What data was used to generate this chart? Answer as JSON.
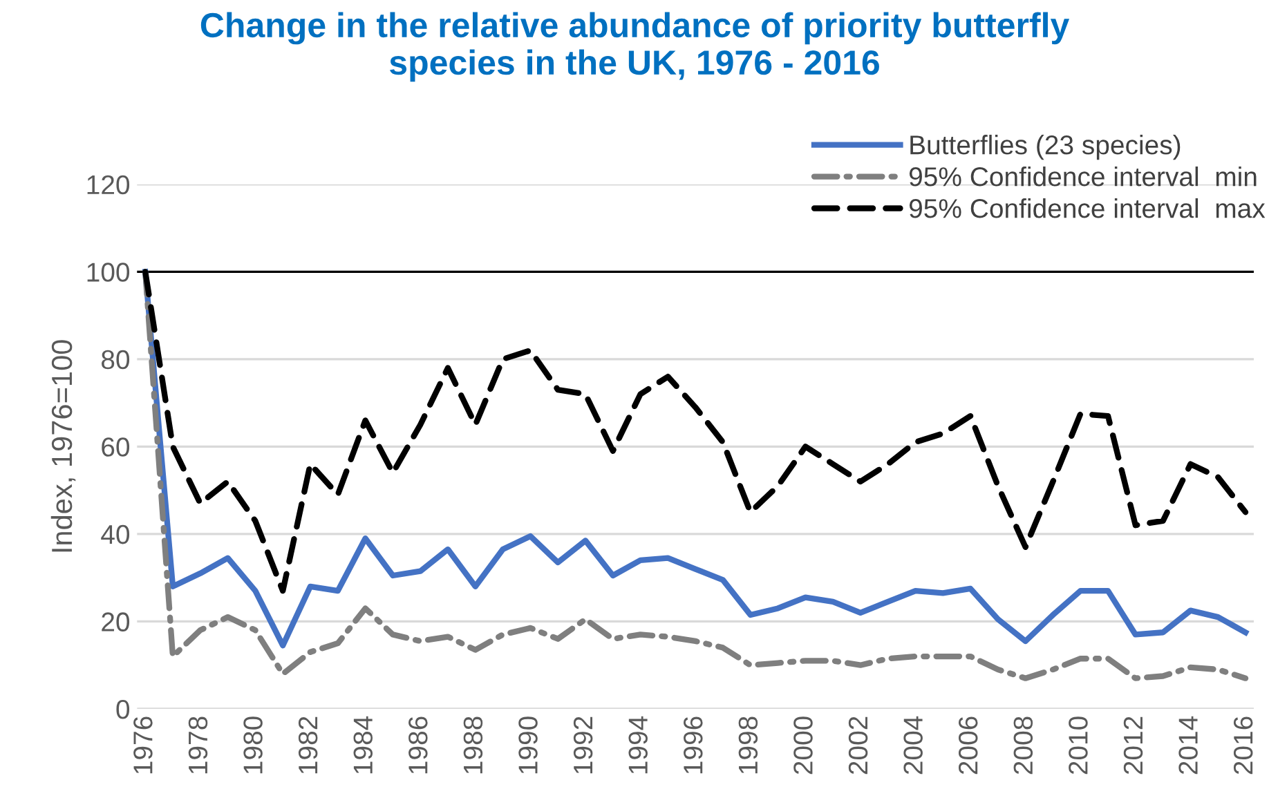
{
  "chart_data": {
    "type": "line",
    "title": "Change in the relative abundance of priority butterfly\nspecies in the UK, 1976 - 2016",
    "ylabel": "Index, 1976=100",
    "categories": [
      "1976",
      null,
      "1978",
      null,
      "1980",
      null,
      "1982",
      null,
      "1984",
      null,
      "1986",
      null,
      "1988",
      null,
      "1990",
      null,
      "1992",
      null,
      "1994",
      null,
      "1996",
      null,
      "1998",
      null,
      "2000",
      null,
      "2002",
      null,
      "2004",
      null,
      "2006",
      null,
      "2008",
      null,
      "2010",
      null,
      "2012",
      null,
      "2014",
      null,
      "2016"
    ],
    "series": [
      {
        "name": "Butterflies (23 species)",
        "color": "#4472c4",
        "line_style": "solid",
        "values": [
          100,
          28,
          31,
          34.5,
          27,
          14.5,
          28,
          27,
          39,
          30.5,
          31.5,
          36.5,
          28,
          36.5,
          39.5,
          33.5,
          38.5,
          30.5,
          34,
          34.5,
          32,
          29.5,
          21.5,
          23,
          25.5,
          24.5,
          22,
          24.5,
          27,
          26.5,
          27.5,
          20.5,
          15.5,
          21.5,
          27,
          27,
          17,
          17.5,
          22.5,
          21,
          17.5
        ]
      },
      {
        "name": "95% Confidence interval  min",
        "color": "#7f7f7f",
        "line_style": "dashdot",
        "values": [
          100,
          12,
          18,
          21,
          18,
          8,
          13,
          15,
          23,
          17,
          15.5,
          16.5,
          13.5,
          17,
          18.5,
          16,
          20.5,
          16,
          17,
          16.5,
          15.5,
          14,
          10,
          10.5,
          11,
          11,
          10,
          11.5,
          12,
          12,
          12,
          9,
          7,
          9,
          11.5,
          11.5,
          7,
          7.5,
          9.5,
          9,
          7
        ]
      },
      {
        "name": "95% Confidence interval  max",
        "color": "#000000",
        "line_style": "dashed",
        "values": [
          100,
          60,
          47,
          52,
          43,
          27,
          56,
          49,
          66,
          54,
          65,
          78,
          65,
          80,
          82,
          73,
          72,
          59,
          72,
          76,
          69,
          61,
          45,
          51,
          60,
          56,
          52,
          56,
          61,
          63,
          67,
          51,
          37,
          52,
          67.5,
          67,
          42,
          43,
          56,
          53,
          45
        ]
      }
    ],
    "ylim": [
      0,
      120
    ],
    "yticks": [
      0,
      20,
      40,
      60,
      80,
      100,
      120
    ],
    "ref_lines": [
      {
        "axis": "y",
        "value": 100,
        "color": "#000000"
      }
    ],
    "grid": "y",
    "legend": "top right",
    "marker": "none"
  }
}
